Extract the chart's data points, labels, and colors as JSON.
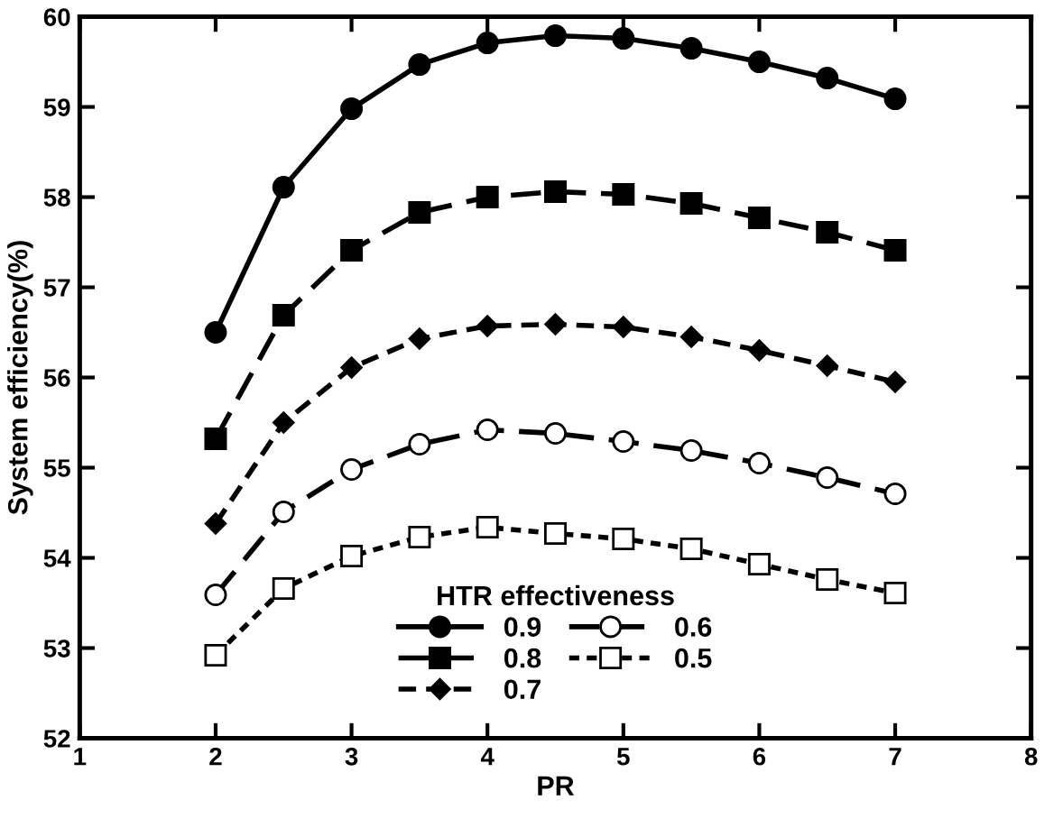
{
  "chart_data": {
    "type": "line",
    "xlabel": "PR",
    "ylabel": "System efficiency(%)",
    "legend_title": "HTR effectiveness",
    "legend": "bottom",
    "x": [
      2,
      2.5,
      3,
      3.5,
      4,
      4.5,
      5,
      5.5,
      6,
      6.5,
      7
    ],
    "xlim": [
      1,
      8
    ],
    "xticks": [
      1,
      2,
      3,
      4,
      5,
      6,
      7,
      8
    ],
    "ylim": [
      52,
      60
    ],
    "yticks": [
      52,
      53,
      54,
      55,
      56,
      57,
      58,
      59,
      60
    ],
    "grid": false,
    "series": [
      {
        "name": "0.9",
        "color": "#000000",
        "marker": "circle",
        "line_style": "solid",
        "values": [
          56.5,
          58.11,
          58.98,
          59.47,
          59.71,
          59.79,
          59.76,
          59.65,
          59.5,
          59.32,
          59.09
        ]
      },
      {
        "name": "0.8",
        "color": "#000000",
        "marker": "square",
        "line_style": "dashed",
        "values": [
          55.32,
          56.69,
          57.41,
          57.83,
          58.0,
          58.06,
          58.03,
          57.93,
          57.77,
          57.61,
          57.41
        ]
      },
      {
        "name": "0.7",
        "color": "#000000",
        "marker": "diamond",
        "line_style": "dashed",
        "values": [
          54.38,
          55.5,
          56.11,
          56.43,
          56.57,
          56.59,
          56.56,
          56.45,
          56.3,
          56.13,
          55.95
        ]
      },
      {
        "name": "0.6",
        "color": "#000000",
        "marker": "circle",
        "line_style": "dashed",
        "values": [
          53.59,
          54.51,
          54.98,
          55.26,
          55.42,
          55.38,
          55.29,
          55.19,
          55.05,
          54.89,
          54.71
        ]
      },
      {
        "name": "0.5",
        "color": "#000000",
        "marker": "square",
        "line_style": "dotted",
        "values": [
          52.92,
          53.66,
          54.02,
          54.23,
          54.34,
          54.27,
          54.21,
          54.1,
          53.93,
          53.76,
          53.61
        ]
      }
    ]
  }
}
